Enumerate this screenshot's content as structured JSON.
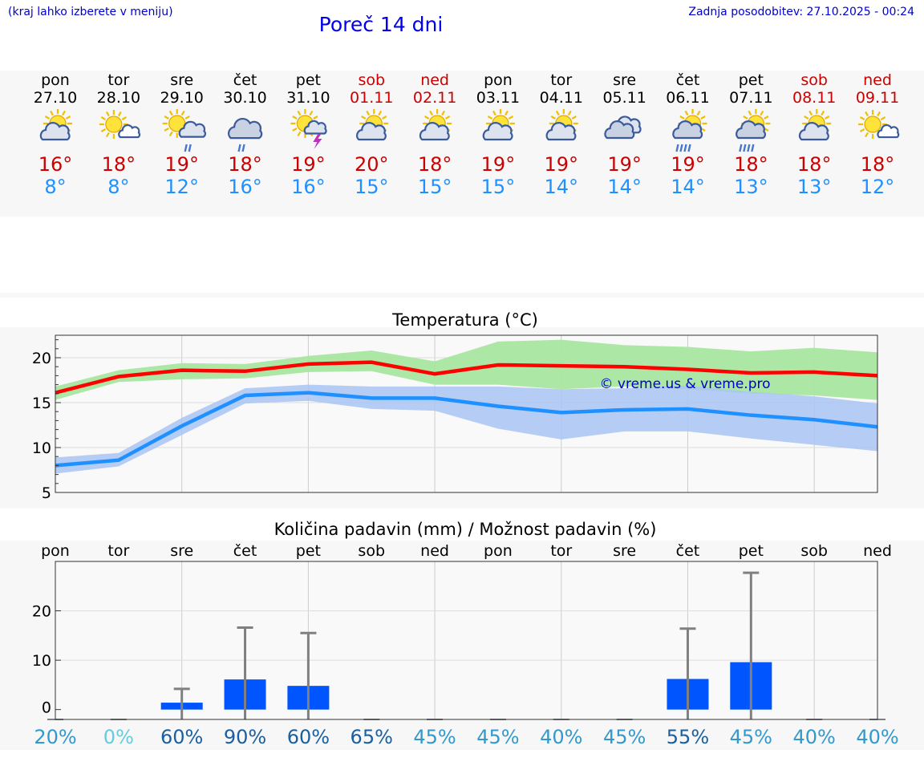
{
  "header": {
    "hint": "(kraj lahko izberete v meniju)",
    "title": "Poreč 14 dni",
    "updated": "Zadnja posodobitev: 27.10.2025 - 00:24"
  },
  "days": [
    {
      "name": "pon",
      "date": "27.10",
      "weekend": false,
      "icon": "partly-cloudy-icon",
      "max": "16°",
      "min": "8°"
    },
    {
      "name": "tor",
      "date": "28.10",
      "weekend": false,
      "icon": "mostly-sunny-icon",
      "max": "18°",
      "min": "8°"
    },
    {
      "name": "sre",
      "date": "29.10",
      "weekend": false,
      "icon": "sun-cloud-rain-icon",
      "max": "19°",
      "min": "12°"
    },
    {
      "name": "čet",
      "date": "30.10",
      "weekend": false,
      "icon": "cloudy-rain-icon",
      "max": "18°",
      "min": "16°"
    },
    {
      "name": "pet",
      "date": "31.10",
      "weekend": false,
      "icon": "sun-thunderstorm-icon",
      "max": "19°",
      "min": "16°"
    },
    {
      "name": "sob",
      "date": "01.11",
      "weekend": true,
      "icon": "partly-cloudy-icon",
      "max": "20°",
      "min": "15°"
    },
    {
      "name": "ned",
      "date": "02.11",
      "weekend": true,
      "icon": "partly-cloudy-icon",
      "max": "18°",
      "min": "15°"
    },
    {
      "name": "pon",
      "date": "03.11",
      "weekend": false,
      "icon": "partly-cloudy-icon",
      "max": "19°",
      "min": "15°"
    },
    {
      "name": "tor",
      "date": "04.11",
      "weekend": false,
      "icon": "partly-cloudy-icon",
      "max": "19°",
      "min": "14°"
    },
    {
      "name": "sre",
      "date": "05.11",
      "weekend": false,
      "icon": "cloudy-icon",
      "max": "19°",
      "min": "14°"
    },
    {
      "name": "čet",
      "date": "06.11",
      "weekend": false,
      "icon": "sun-cloud-heavy-rain-icon",
      "max": "19°",
      "min": "14°"
    },
    {
      "name": "pet",
      "date": "07.11",
      "weekend": false,
      "icon": "sun-cloud-heavy-rain-icon",
      "max": "18°",
      "min": "13°"
    },
    {
      "name": "sob",
      "date": "08.11",
      "weekend": true,
      "icon": "partly-cloudy-icon",
      "max": "18°",
      "min": "13°"
    },
    {
      "name": "ned",
      "date": "09.11",
      "weekend": true,
      "icon": "mostly-sunny-icon",
      "max": "18°",
      "min": "12°"
    }
  ],
  "colors": {
    "max_line": "#ff0000",
    "max_band": "#a8e6a0",
    "min_line": "#1e90ff",
    "min_band": "#a9c4f5",
    "rain_bar": "#0055ff",
    "whisker": "#808080",
    "weekend": "#cc0000",
    "copyright": "#0000cc"
  },
  "chart_data": [
    {
      "type": "line",
      "title": "Temperatura (°C)",
      "copyright": "© vreme.us & vreme.pro",
      "x": [
        0,
        1,
        2,
        3,
        4,
        5,
        6,
        7,
        8,
        9,
        10,
        11,
        12,
        13
      ],
      "ylim": [
        5,
        22.5
      ],
      "yticks": [
        5,
        10,
        15,
        20
      ],
      "grid": true,
      "series": [
        {
          "key": "max",
          "values": [
            16.1,
            17.9,
            18.6,
            18.5,
            19.3,
            19.5,
            18.2,
            19.2,
            19.1,
            19.0,
            18.7,
            18.3,
            18.4,
            18.0
          ],
          "band_low": [
            15.3,
            17.3,
            17.6,
            17.7,
            18.4,
            18.5,
            17.0,
            17.0,
            16.5,
            16.8,
            16.5,
            16.0,
            15.8,
            15.3
          ],
          "band_high": [
            16.8,
            18.6,
            19.4,
            19.3,
            20.2,
            20.8,
            19.6,
            21.8,
            22.0,
            21.4,
            21.2,
            20.7,
            21.1,
            20.6
          ]
        },
        {
          "key": "min",
          "values": [
            8.0,
            8.6,
            12.4,
            15.8,
            16.1,
            15.5,
            15.5,
            14.6,
            13.9,
            14.2,
            14.3,
            13.6,
            13.1,
            12.3
          ],
          "band_low": [
            7.1,
            7.9,
            11.4,
            14.9,
            15.2,
            14.3,
            14.1,
            12.1,
            10.9,
            11.8,
            11.8,
            11.0,
            10.3,
            9.6
          ],
          "band_high": [
            8.9,
            9.4,
            13.3,
            16.6,
            17.0,
            16.8,
            16.8,
            16.8,
            16.5,
            16.6,
            16.9,
            16.2,
            15.7,
            14.9
          ]
        }
      ]
    },
    {
      "type": "bar",
      "title": "Količina padavin (mm) / Možnost padavin (%)",
      "categories": [
        "pon",
        "tor",
        "sre",
        "čet",
        "pet",
        "sob",
        "ned",
        "pon",
        "tor",
        "sre",
        "čet",
        "pet",
        "sob",
        "ned"
      ],
      "values": [
        0,
        0,
        1.4,
        6.1,
        4.8,
        0,
        0,
        0,
        0,
        0,
        6.2,
        9.6,
        0,
        0
      ],
      "whisker_high": [
        0,
        0,
        4.2,
        16.6,
        15.5,
        0,
        0,
        0,
        0,
        0,
        16.4,
        27.7,
        0,
        0
      ],
      "chance": [
        "20%",
        "0%",
        "60%",
        "90%",
        "60%",
        "65%",
        "45%",
        "45%",
        "40%",
        "45%",
        "55%",
        "45%",
        "40%",
        "40%"
      ],
      "chance_colors": [
        "#3399cc",
        "#66ccdd",
        "#1a5fa0",
        "#1a5fa0",
        "#1a5fa0",
        "#1a5fa0",
        "#3399cc",
        "#3399cc",
        "#3399cc",
        "#3399cc",
        "#1a5fa0",
        "#3399cc",
        "#3399cc",
        "#3399cc"
      ],
      "ylim": [
        -2,
        30
      ],
      "yticks": [
        0,
        10,
        20
      ],
      "grid": true
    }
  ]
}
